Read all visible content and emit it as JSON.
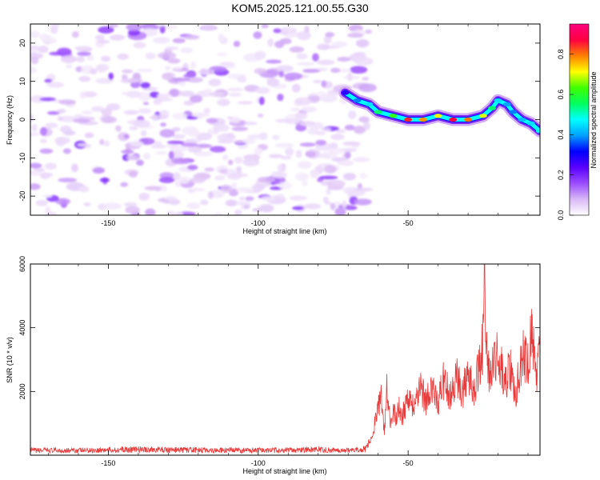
{
  "title": "KOM5.2025.121.00.55.G30",
  "chart_data": [
    {
      "type": "heatmap",
      "xlabel": "Height of straight line (km)",
      "ylabel": "Frequency (Hz)",
      "xlim": [
        -176,
        -6
      ],
      "ylim": [
        -25,
        25
      ],
      "xticks": [
        -150,
        -100,
        -50
      ],
      "yticks": [
        -20,
        -10,
        0,
        10,
        20
      ],
      "colorbar": {
        "label": "Normalized spectral amplitude",
        "range": [
          0,
          0.95
        ],
        "ticks": [
          "0.0",
          "0.2",
          "0.4",
          "0.6",
          "0.8"
        ],
        "colors": [
          "#ffffff",
          "#d9b8f5",
          "#9b4dff",
          "#5a00ff",
          "#0000ff",
          "#00a0ff",
          "#00ffff",
          "#00ff60",
          "#40ff00",
          "#ffff00",
          "#ff8000",
          "#ff0040",
          "#ff0080"
        ]
      },
      "ridge": {
        "x": [
          -71,
          -67,
          -63,
          -60,
          -55,
          -50,
          -45,
          -40,
          -35,
          -30,
          -25,
          -22,
          -20,
          -17,
          -15,
          -12,
          -9,
          -6
        ],
        "freq": [
          7,
          5,
          4,
          2,
          1,
          0,
          0,
          1,
          0,
          0,
          1,
          3,
          5,
          4,
          2,
          0,
          -1,
          -3
        ],
        "amplitude": [
          0.28,
          0.38,
          0.45,
          0.55,
          0.62,
          0.85,
          0.78,
          0.72,
          0.88,
          0.8,
          0.7,
          0.55,
          0.45,
          0.4,
          0.38,
          0.42,
          0.45,
          0.48
        ]
      },
      "noise_extent_km": [
        -176,
        -63
      ]
    },
    {
      "type": "line",
      "xlabel": "Height of straight line (km)",
      "ylabel": "SNR (10 * v/v)",
      "xlim": [
        -176,
        -6
      ],
      "ylim": [
        0,
        6000
      ],
      "xticks": [
        -150,
        -100,
        -50
      ],
      "yticks": [
        2000,
        4000,
        6000
      ],
      "color": "#e83a3a",
      "x": [
        -176,
        -160,
        -140,
        -120,
        -100,
        -80,
        -70,
        -64,
        -62,
        -60,
        -59,
        -58,
        -57,
        -56,
        -55,
        -54,
        -53,
        -52,
        -50,
        -48,
        -46,
        -44,
        -42,
        -40,
        -38,
        -36,
        -34,
        -32,
        -30,
        -28,
        -26,
        -25,
        -24.5,
        -24,
        -23,
        -22,
        -20,
        -18,
        -16,
        -14,
        -12,
        -10,
        -9,
        -8,
        -7,
        -6
      ],
      "y": [
        150,
        150,
        180,
        160,
        150,
        170,
        150,
        200,
        600,
        1500,
        1800,
        700,
        2200,
        900,
        1400,
        1100,
        1600,
        1200,
        1900,
        1500,
        2200,
        1700,
        2000,
        1700,
        2400,
        1800,
        2500,
        1900,
        2700,
        2100,
        2800,
        3600,
        6000,
        3400,
        2500,
        2600,
        3200,
        2300,
        2700,
        2000,
        3100,
        3000,
        3700,
        3500,
        2400,
        3300
      ]
    }
  ]
}
